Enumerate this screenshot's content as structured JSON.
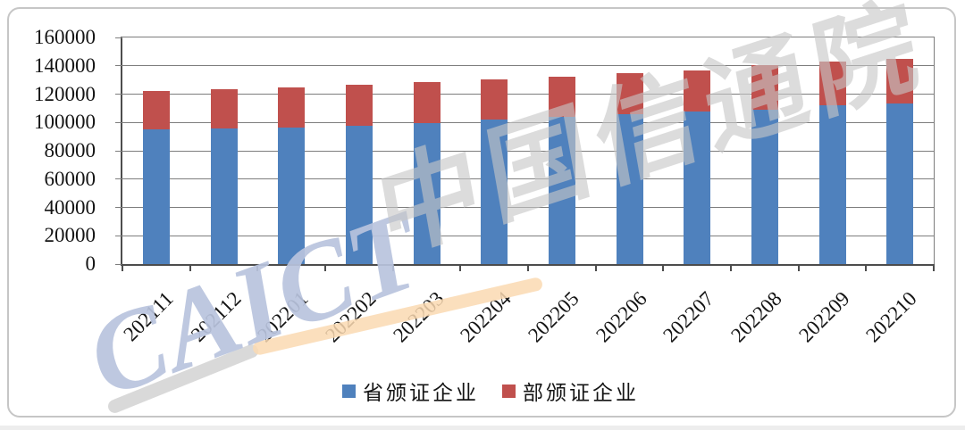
{
  "watermark": {
    "latin": "CAICT",
    "cjk": "中国信通院"
  },
  "colors": {
    "series_blue": "#4F81BD",
    "series_red": "#C0504D",
    "gridline": "#7d7d7d",
    "axis": "#4d4d4d",
    "watermark_blue": "#b9c4de",
    "watermark_gray": "#c6c6c6",
    "watermark_orange": "#fad9b1"
  },
  "chart_data": {
    "type": "bar",
    "stacked": true,
    "title": "",
    "xlabel": "",
    "ylabel": "",
    "categories": [
      "202111",
      "202112",
      "202201",
      "202202",
      "202203",
      "202204",
      "202205",
      "202206",
      "202207",
      "202208",
      "202209",
      "202210"
    ],
    "series": [
      {
        "name": "省颁证企业",
        "color": "#4F81BD",
        "values": [
          95000,
          95600,
          96600,
          97800,
          99400,
          102000,
          104000,
          106000,
          107500,
          109000,
          112400,
          113500
        ]
      },
      {
        "name": "部颁证企业",
        "color": "#C0504D",
        "values": [
          27500,
          28000,
          28400,
          28700,
          29400,
          28400,
          28000,
          29000,
          29500,
          31500,
          30600,
          31500
        ]
      }
    ],
    "totals": [
      122500,
      123600,
      125000,
      126500,
      128800,
      130400,
      132000,
      135000,
      137000,
      140500,
      143000,
      145000
    ],
    "ylim": [
      0,
      160000
    ],
    "ytick_step": 20000,
    "ytick_labels": [
      "0",
      "20000",
      "40000",
      "60000",
      "80000",
      "100000",
      "120000",
      "140000",
      "160000"
    ],
    "grid": true,
    "legend_position": "bottom"
  }
}
